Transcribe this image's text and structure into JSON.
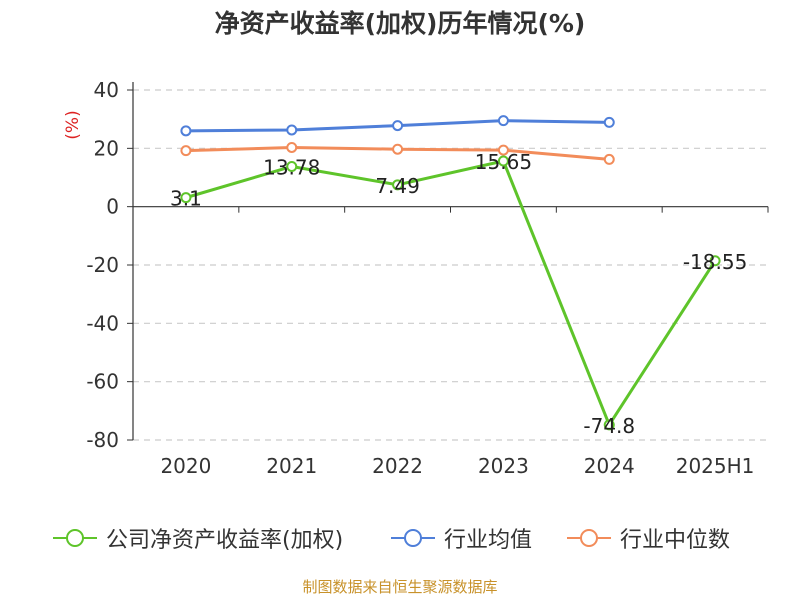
{
  "title": "净资产收益率(加权)历年情况(%)",
  "source": "制图数据来自恒生聚源数据库",
  "chart_data": {
    "type": "line",
    "title": "净资产收益率(加权)历年情况(%)",
    "ylabel": "(%)",
    "xlabel": "",
    "categories": [
      "2020",
      "2021",
      "2022",
      "2023",
      "2024",
      "2025H1"
    ],
    "ylim": [
      -80,
      40
    ],
    "yticks": [
      "40",
      "20",
      "0",
      "-20",
      "-40",
      "-60",
      "-80"
    ],
    "grid": true,
    "legend_position": "bottom",
    "series": [
      {
        "name": "公司净资产收益率(加权)",
        "color": "#5ec42a",
        "values": [
          3.1,
          13.78,
          7.49,
          15.65,
          -74.8,
          -18.55
        ],
        "labels": [
          "3.1",
          "13.78",
          "7.49",
          "15.65",
          "-74.8",
          "-18.55"
        ]
      },
      {
        "name": "行业均值",
        "color": "#4f7fd9",
        "values": [
          26.0,
          26.3,
          27.8,
          29.5,
          28.9,
          null
        ]
      },
      {
        "name": "行业中位数",
        "color": "#f28c5a",
        "values": [
          19.2,
          20.3,
          19.7,
          19.4,
          16.2,
          null
        ]
      }
    ]
  }
}
